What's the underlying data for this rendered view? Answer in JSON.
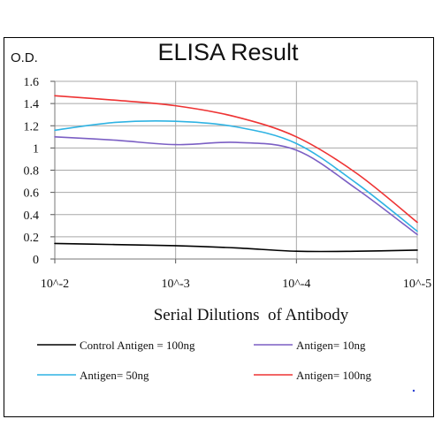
{
  "chart_data": {
    "type": "line",
    "title": "ELISA Result",
    "ylabel": "O.D.",
    "xlabel": "Serial Dilutions  of Antibody",
    "x_tick_labels": [
      "10^-2",
      "10^-3",
      "10^-4",
      "10^-5"
    ],
    "y_tick_labels": [
      "0",
      "0.2",
      "0.4",
      "0.6",
      "0.8",
      "1",
      "1.2",
      "1.4",
      "1.6"
    ],
    "ylim": [
      0,
      1.6
    ],
    "x": [
      0,
      0.5,
      1,
      1.5,
      2,
      2.5,
      3
    ],
    "grid": true,
    "legend_position": "bottom",
    "series": [
      {
        "name": "Control Antigen = 100ng",
        "color": "#000000",
        "values": [
          0.14,
          0.13,
          0.12,
          0.1,
          0.07,
          0.07,
          0.08
        ]
      },
      {
        "name": "Antigen= 10ng",
        "color": "#7b5fc4",
        "values": [
          1.1,
          1.07,
          1.03,
          1.05,
          0.98,
          0.63,
          0.22
        ]
      },
      {
        "name": "Antigen= 50ng",
        "color": "#2fb3e3",
        "values": [
          1.16,
          1.23,
          1.24,
          1.19,
          1.04,
          0.68,
          0.25
        ]
      },
      {
        "name": "Antigen= 100ng",
        "color": "#ee3333",
        "values": [
          1.47,
          1.43,
          1.38,
          1.28,
          1.1,
          0.77,
          0.33
        ]
      }
    ]
  }
}
